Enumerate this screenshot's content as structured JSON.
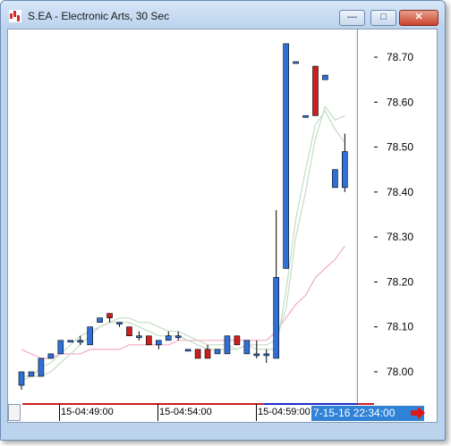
{
  "window": {
    "title": "S.EA - Electronic Arts, 30 Sec",
    "minimize_label": "—",
    "maximize_label": "□",
    "close_label": "✕"
  },
  "colors": {
    "accent": "#2f82d6",
    "bar_up": "#2f6fd6",
    "bar_down": "#cc1f1f",
    "ma_pink": "#f2a9c9",
    "ma_green": "#c4dcc4",
    "cursor_line": "#3aa0c8"
  },
  "time_axis": {
    "labels": [
      "15-04:49:00",
      "15-04:54:00",
      "15-04:59:00"
    ],
    "cursor_time": "7-15-16 22:34:00"
  },
  "icons": {
    "app": "chart-icon",
    "scroll_right": "red-right-arrow-icon"
  },
  "chart_data": {
    "type": "candlestick",
    "y_ticks": [
      "78.70",
      "78.60",
      "78.50",
      "78.40",
      "78.30",
      "78.20",
      "78.10",
      "78.00"
    ],
    "ylim": [
      77.96,
      78.78
    ],
    "bars": [
      {
        "o": 77.97,
        "h": 78.0,
        "l": 77.96,
        "c": 78.0
      },
      {
        "o": 77.99,
        "h": 78.0,
        "l": 77.99,
        "c": 78.0
      },
      {
        "o": 77.99,
        "h": 78.03,
        "l": 77.99,
        "c": 78.03
      },
      {
        "o": 78.03,
        "h": 78.04,
        "l": 78.03,
        "c": 78.04
      },
      {
        "o": 78.04,
        "h": 78.07,
        "l": 78.04,
        "c": 78.07
      },
      {
        "o": 78.07,
        "h": 78.07,
        "l": 78.07,
        "c": 78.07
      },
      {
        "o": 78.07,
        "h": 78.08,
        "l": 78.06,
        "c": 78.07
      },
      {
        "o": 78.06,
        "h": 78.1,
        "l": 78.06,
        "c": 78.1
      },
      {
        "o": 78.11,
        "h": 78.12,
        "l": 78.11,
        "c": 78.12
      },
      {
        "o": 78.13,
        "h": 78.13,
        "l": 78.11,
        "c": 78.12
      },
      {
        "o": 78.11,
        "h": 78.11,
        "l": 78.1,
        "c": 78.11
      },
      {
        "o": 78.1,
        "h": 78.1,
        "l": 78.08,
        "c": 78.08
      },
      {
        "o": 78.08,
        "h": 78.09,
        "l": 78.07,
        "c": 78.08
      },
      {
        "o": 78.08,
        "h": 78.08,
        "l": 78.06,
        "c": 78.06
      },
      {
        "o": 78.06,
        "h": 78.07,
        "l": 78.05,
        "c": 78.07
      },
      {
        "o": 78.07,
        "h": 78.09,
        "l": 78.07,
        "c": 78.08
      },
      {
        "o": 78.08,
        "h": 78.09,
        "l": 78.07,
        "c": 78.08
      },
      {
        "o": 78.05,
        "h": 78.05,
        "l": 78.05,
        "c": 78.05
      },
      {
        "o": 78.05,
        "h": 78.05,
        "l": 78.03,
        "c": 78.03
      },
      {
        "o": 78.05,
        "h": 78.06,
        "l": 78.03,
        "c": 78.03
      },
      {
        "o": 78.04,
        "h": 78.05,
        "l": 78.04,
        "c": 78.05
      },
      {
        "o": 78.04,
        "h": 78.08,
        "l": 78.04,
        "c": 78.08
      },
      {
        "o": 78.08,
        "h": 78.08,
        "l": 78.06,
        "c": 78.06
      },
      {
        "o": 78.04,
        "h": 78.07,
        "l": 78.04,
        "c": 78.07
      },
      {
        "o": 78.04,
        "h": 78.07,
        "l": 78.03,
        "c": 78.04
      },
      {
        "o": 78.04,
        "h": 78.05,
        "l": 78.02,
        "c": 78.04
      },
      {
        "o": 78.03,
        "h": 78.36,
        "l": 78.03,
        "c": 78.21
      },
      {
        "o": 78.23,
        "h": 78.73,
        "l": 78.23,
        "c": 78.73
      },
      {
        "o": 78.69,
        "h": 78.69,
        "l": 78.69,
        "c": 78.69
      },
      {
        "o": 78.57,
        "h": 78.57,
        "l": 78.57,
        "c": 78.57
      },
      {
        "o": 78.68,
        "h": 78.68,
        "l": 78.57,
        "c": 78.57
      },
      {
        "o": 78.65,
        "h": 78.66,
        "l": 78.65,
        "c": 78.66
      },
      {
        "o": 78.41,
        "h": 78.45,
        "l": 78.41,
        "c": 78.45
      },
      {
        "o": 78.41,
        "h": 78.53,
        "l": 78.4,
        "c": 78.49
      }
    ],
    "series": [
      {
        "values": [
          78.05,
          78.04,
          78.03,
          78.03,
          78.04,
          78.04,
          78.04,
          78.05,
          78.05,
          78.05,
          78.05,
          78.06,
          78.06,
          78.06,
          78.06,
          78.06,
          78.07,
          78.07,
          78.07,
          78.07,
          78.07,
          78.07,
          78.07,
          78.07,
          78.07,
          78.07,
          78.09,
          78.12,
          78.15,
          78.17,
          78.21,
          78.23,
          78.25,
          78.28
        ]
      },
      {
        "values": [
          77.99,
          77.99,
          78.01,
          78.02,
          78.04,
          78.06,
          78.08,
          78.09,
          78.1,
          78.11,
          78.11,
          78.11,
          78.1,
          78.09,
          78.08,
          78.08,
          78.08,
          78.07,
          78.06,
          78.05,
          78.05,
          78.05,
          78.05,
          78.06,
          78.05,
          78.05,
          78.05,
          78.18,
          78.34,
          78.45,
          78.55,
          78.58,
          78.54,
          78.51
        ]
      },
      {
        "values": [
          77.98,
          77.99,
          77.99,
          78.0,
          78.02,
          78.04,
          78.06,
          78.08,
          78.1,
          78.11,
          78.12,
          78.12,
          78.11,
          78.11,
          78.1,
          78.09,
          78.09,
          78.08,
          78.07,
          78.06,
          78.06,
          78.06,
          78.05,
          78.06,
          78.06,
          78.06,
          78.07,
          78.14,
          78.3,
          78.4,
          78.52,
          78.59,
          78.56,
          78.57
        ]
      }
    ]
  }
}
